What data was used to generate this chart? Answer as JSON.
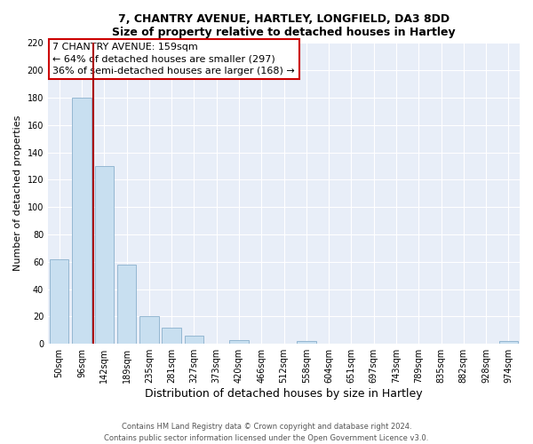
{
  "title1": "7, CHANTRY AVENUE, HARTLEY, LONGFIELD, DA3 8DD",
  "title2": "Size of property relative to detached houses in Hartley",
  "xlabel": "Distribution of detached houses by size in Hartley",
  "ylabel": "Number of detached properties",
  "bar_labels": [
    "50sqm",
    "96sqm",
    "142sqm",
    "189sqm",
    "235sqm",
    "281sqm",
    "327sqm",
    "373sqm",
    "420sqm",
    "466sqm",
    "512sqm",
    "558sqm",
    "604sqm",
    "651sqm",
    "697sqm",
    "743sqm",
    "789sqm",
    "835sqm",
    "882sqm",
    "928sqm",
    "974sqm"
  ],
  "bar_values": [
    62,
    180,
    130,
    58,
    20,
    12,
    6,
    0,
    3,
    0,
    0,
    2,
    0,
    0,
    0,
    0,
    0,
    0,
    0,
    0,
    2
  ],
  "bar_color": "#c8dff0",
  "bar_edge_color": "#8ab0cc",
  "vline_color": "#aa0000",
  "vline_x": 1.5,
  "annotation_title": "7 CHANTRY AVENUE: 159sqm",
  "annotation_line1": "← 64% of detached houses are smaller (297)",
  "annotation_line2": "36% of semi-detached houses are larger (168) →",
  "annotation_box_color": "#ffffff",
  "annotation_box_edge": "#cc0000",
  "ylim": [
    0,
    220
  ],
  "yticks": [
    0,
    20,
    40,
    60,
    80,
    100,
    120,
    140,
    160,
    180,
    200,
    220
  ],
  "footer1": "Contains HM Land Registry data © Crown copyright and database right 2024.",
  "footer2": "Contains public sector information licensed under the Open Government Licence v3.0.",
  "plot_bg_color": "#e8eef8",
  "fig_bg_color": "#ffffff",
  "grid_color": "#ffffff",
  "title_fontsize": 9,
  "xlabel_fontsize": 9,
  "ylabel_fontsize": 8,
  "tick_fontsize": 7,
  "annotation_fontsize": 8
}
